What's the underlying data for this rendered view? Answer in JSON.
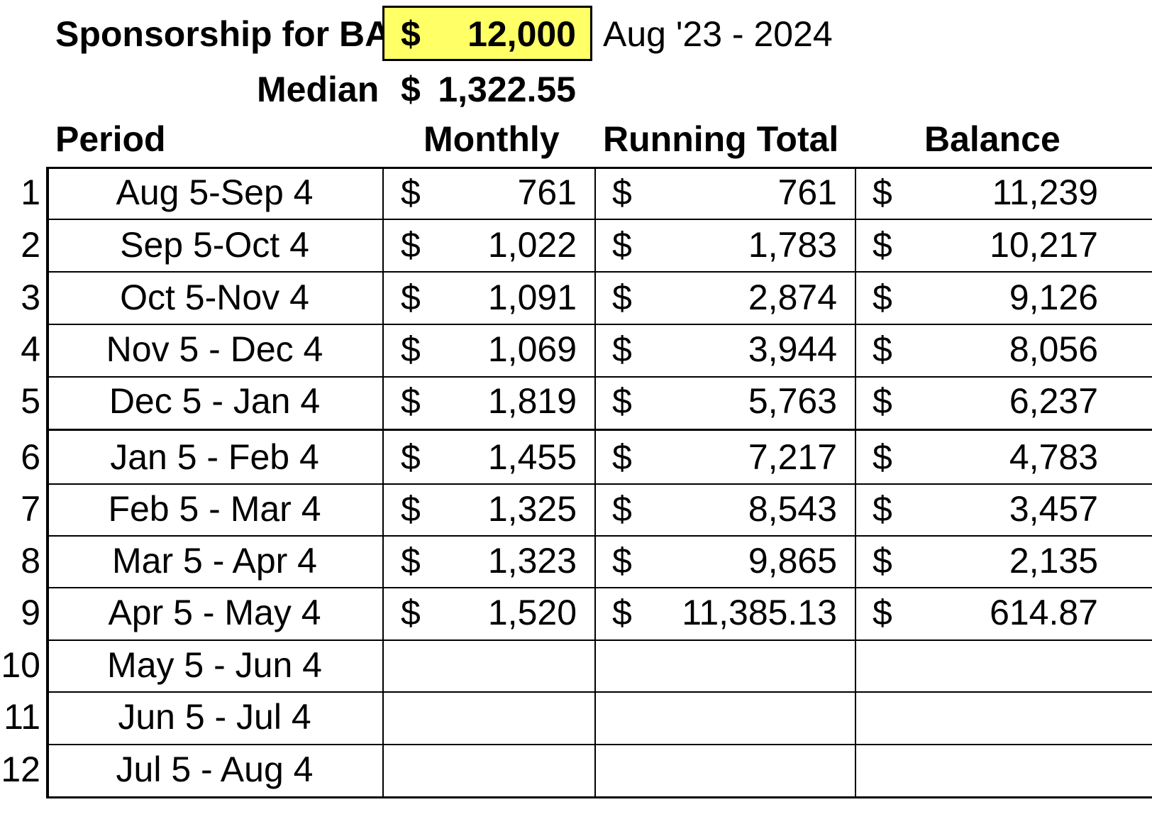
{
  "header": {
    "title": "Sponsorship for BAI",
    "amount_symbol": "$",
    "amount": "12,000",
    "date_range": "Aug '23 - 2024",
    "median_label": "Median",
    "median_symbol": "$",
    "median_value": "1,322.55"
  },
  "columns": {
    "period": "Period",
    "monthly": "Monthly",
    "running_total": "Running Total",
    "balance": "Balance"
  },
  "colors": {
    "highlight": "#ffff66",
    "border": "#000000"
  },
  "rows": [
    {
      "n": "1",
      "period": "Aug 5-Sep 4",
      "monthly": "761",
      "running": "761",
      "balance": "11,239"
    },
    {
      "n": "2",
      "period": "Sep 5-Oct 4",
      "monthly": "1,022",
      "running": "1,783",
      "balance": "10,217"
    },
    {
      "n": "3",
      "period": "Oct 5-Nov 4",
      "monthly": "1,091",
      "running": "2,874",
      "balance": "9,126"
    },
    {
      "n": "4",
      "period": "Nov 5 - Dec 4",
      "monthly": "1,069",
      "running": "3,944",
      "balance": "8,056"
    },
    {
      "n": "5",
      "period": "Dec 5 - Jan 4",
      "monthly": "1,819",
      "running": "5,763",
      "balance": "6,237"
    },
    {
      "n": "6",
      "period": "Jan 5 - Feb 4",
      "monthly": "1,455",
      "running": "7,217",
      "balance": "4,783"
    },
    {
      "n": "7",
      "period": "Feb 5 - Mar 4",
      "monthly": "1,325",
      "running": "8,543",
      "balance": "3,457"
    },
    {
      "n": "8",
      "period": "Mar 5 - Apr 4",
      "monthly": "1,323",
      "running": "9,865",
      "balance": "2,135"
    },
    {
      "n": "9",
      "period": "Apr 5 - May 4",
      "monthly": "1,520",
      "running": "11,385.13",
      "balance": "614.87"
    },
    {
      "n": "10",
      "period": "May 5 - Jun 4",
      "monthly": "",
      "running": "",
      "balance": ""
    },
    {
      "n": "11",
      "period": "Jun 5 - Jul 4",
      "monthly": "",
      "running": "",
      "balance": ""
    },
    {
      "n": "12",
      "period": "Jul 5 - Aug 4",
      "monthly": "",
      "running": "",
      "balance": ""
    }
  ]
}
